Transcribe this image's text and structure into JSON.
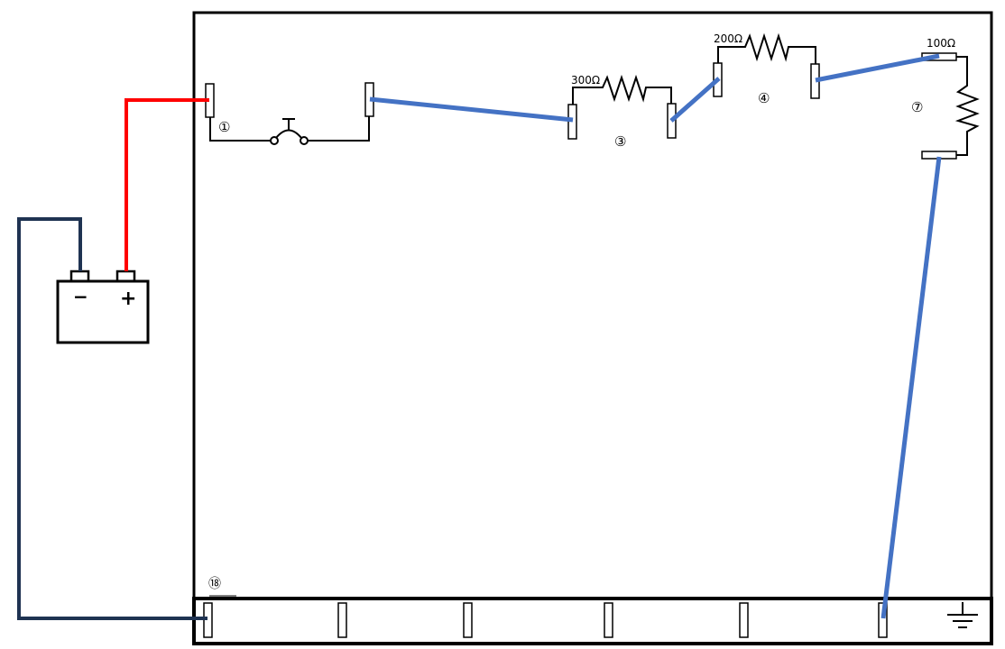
{
  "colors": {
    "outline": "#000000",
    "positive_wire": "#ff0000",
    "negative_wire": "#1f3352",
    "jumper_wire": "#4472c4",
    "background": "#ffffff"
  },
  "battery": {
    "negative_label": "−",
    "positive_label": "+"
  },
  "components": {
    "switch": {
      "number": "①",
      "icon": "push-button-switch-icon"
    },
    "r300": {
      "number": "③",
      "value": "300Ω",
      "icon": "resistor-icon"
    },
    "r200": {
      "number": "④",
      "value": "200Ω",
      "icon": "resistor-icon"
    },
    "r100": {
      "number": "⑦",
      "value": "100Ω",
      "icon": "resistor-icon"
    },
    "bus": {
      "number": "⑱",
      "icon": "ground-icon"
    }
  }
}
